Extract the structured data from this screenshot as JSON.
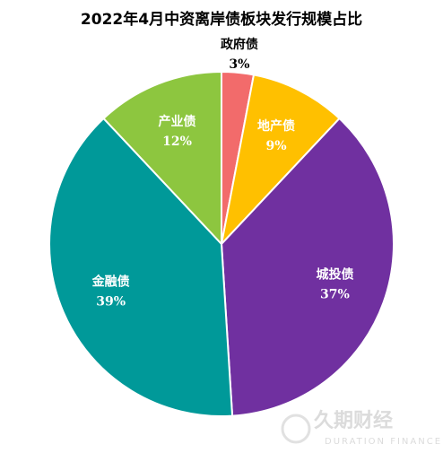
{
  "chart_data": {
    "type": "pie",
    "title": "2022年4月中资离岸债板块发行规模占比",
    "categories": [
      "政府债",
      "地产债",
      "城投债",
      "金融债",
      "产业债"
    ],
    "values": [
      3,
      9,
      37,
      39,
      12
    ],
    "value_labels": [
      "3%",
      "9%",
      "37%",
      "39%",
      "12%"
    ],
    "colors": [
      "#f26b6b",
      "#ffc000",
      "#7030a0",
      "#009999",
      "#8dc63f"
    ],
    "start_angle": 0,
    "direction": "clockwise",
    "watermark": {
      "name": "久期财经",
      "subtitle": "DURATION FINANCE"
    }
  }
}
